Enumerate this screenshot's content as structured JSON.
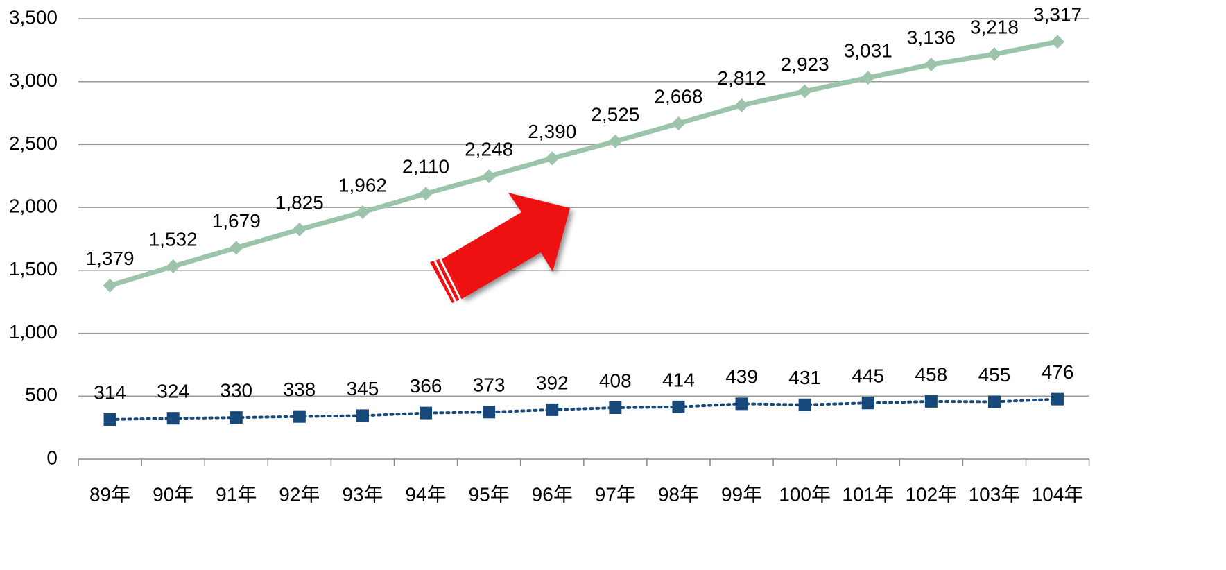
{
  "chart_data": {
    "type": "line",
    "categories": [
      "89年",
      "90年",
      "91年",
      "92年",
      "93年",
      "94年",
      "95年",
      "96年",
      "97年",
      "98年",
      "99年",
      "100年",
      "101年",
      "102年",
      "103年",
      "104年"
    ],
    "series": [
      {
        "color": "#9bc4aa",
        "marker": "diamond",
        "line_style": "solid",
        "values": [
          1379,
          1532,
          1679,
          1825,
          1962,
          2110,
          2248,
          2390,
          2525,
          2668,
          2812,
          2923,
          3031,
          3136,
          3218,
          3317
        ],
        "value_labels": [
          "1,379",
          "1,532",
          "1,679",
          "1,825",
          "1,962",
          "2,110",
          "2,248",
          "2,390",
          "2,525",
          "2,668",
          "2,812",
          "2,923",
          "3,031",
          "3,136",
          "3,218",
          "3,317"
        ]
      },
      {
        "color": "#17497a",
        "marker": "square",
        "line_style": "dotted",
        "values": [
          314,
          324,
          330,
          338,
          345,
          366,
          373,
          392,
          408,
          414,
          439,
          431,
          445,
          458,
          455,
          476
        ]
      }
    ],
    "ylim": [
      0,
      3500
    ],
    "yticks": [
      0,
      500,
      {
        "value": 1000,
        "label": "1,000"
      },
      {
        "value": 1500,
        "label": "1,500"
      },
      {
        "value": 2000,
        "label": "2,000"
      },
      {
        "value": 2500,
        "label": "2,500"
      },
      {
        "value": 3000,
        "label": "3,000"
      },
      {
        "value": 3500,
        "label": "3,500"
      }
    ],
    "grid": true
  }
}
